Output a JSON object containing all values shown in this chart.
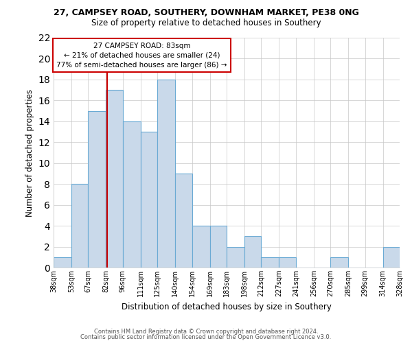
{
  "title": "27, CAMPSEY ROAD, SOUTHERY, DOWNHAM MARKET, PE38 0NG",
  "subtitle": "Size of property relative to detached houses in Southery",
  "xlabel": "Distribution of detached houses by size in Southery",
  "ylabel": "Number of detached properties",
  "bins": [
    38,
    53,
    67,
    82,
    96,
    111,
    125,
    140,
    154,
    169,
    183,
    198,
    212,
    227,
    241,
    256,
    270,
    285,
    299,
    314,
    328
  ],
  "counts": [
    1,
    8,
    15,
    17,
    14,
    13,
    18,
    9,
    4,
    4,
    2,
    3,
    1,
    1,
    0,
    0,
    1,
    0,
    0,
    2
  ],
  "bar_facecolor": "#c9d9ea",
  "bar_edgecolor": "#6aaad4",
  "ylim": [
    0,
    22
  ],
  "yticks": [
    0,
    2,
    4,
    6,
    8,
    10,
    12,
    14,
    16,
    18,
    20,
    22
  ],
  "property_size": 83,
  "property_label": "27 CAMPSEY ROAD: 83sqm",
  "annotation_line1": "← 21% of detached houses are smaller (24)",
  "annotation_line2": "77% of semi-detached houses are larger (86) →",
  "annotation_box_color": "#ffffff",
  "annotation_border_color": "#cc0000",
  "property_line_color": "#cc0000",
  "footer_line1": "Contains HM Land Registry data © Crown copyright and database right 2024.",
  "footer_line2": "Contains public sector information licensed under the Open Government Licence v3.0.",
  "background_color": "#ffffff",
  "grid_color": "#c8c8c8"
}
